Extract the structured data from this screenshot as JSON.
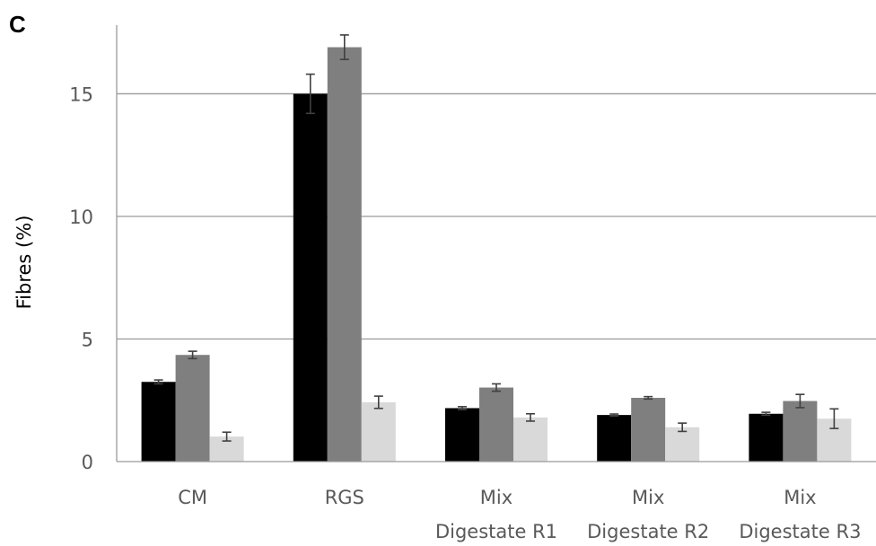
{
  "panel_label": "C",
  "chart_data": {
    "type": "bar",
    "title": "",
    "xlabel": "",
    "ylabel": "Fibres (%)",
    "ylim": [
      0,
      17.8
    ],
    "yticks": [
      0,
      5,
      10,
      15
    ],
    "categories": [
      [
        "CM"
      ],
      [
        "RGS"
      ],
      [
        "Mix",
        "Digestate R1"
      ],
      [
        "Mix",
        "Digestate R2"
      ],
      [
        "Mix",
        "Digestate R3"
      ]
    ],
    "series": [
      {
        "color": "#000000",
        "values": [
          3.25,
          15.0,
          2.18,
          1.9,
          1.95
        ],
        "errors": [
          0.08,
          0.8,
          0.06,
          0.04,
          0.06
        ]
      },
      {
        "color": "#7f7f7f",
        "values": [
          4.35,
          16.9,
          3.02,
          2.6,
          2.47
        ],
        "errors": [
          0.15,
          0.5,
          0.15,
          0.05,
          0.27
        ]
      },
      {
        "color": "#d9d9d9",
        "values": [
          1.02,
          2.42,
          1.8,
          1.4,
          1.75
        ],
        "errors": [
          0.18,
          0.25,
          0.15,
          0.17,
          0.4
        ]
      }
    ],
    "grid": true,
    "legend": "none"
  },
  "colors": {
    "grid": "#9a9a9a",
    "axis": "#9a9a9a",
    "error_bar": "#404040"
  }
}
